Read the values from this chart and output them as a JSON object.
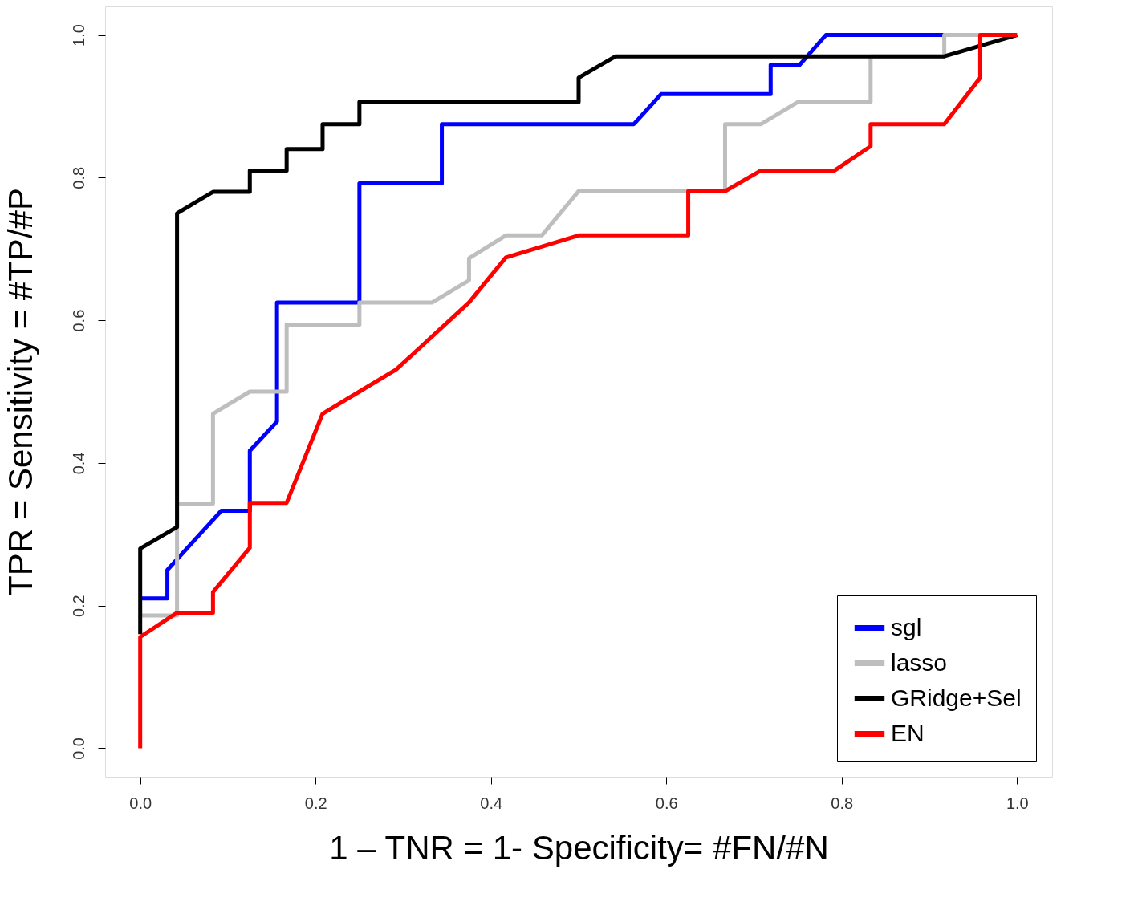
{
  "chart_data": {
    "type": "line",
    "xlabel": "1 – TNR = 1- Specificity= #FN/#N",
    "ylabel": "TPR = Sensitivity = #TP/#P",
    "xlim": [
      -0.04,
      1.04
    ],
    "ylim": [
      -0.04,
      1.04
    ],
    "xticks": [
      {
        "value": 0,
        "label": "0.0"
      },
      0.2,
      0.4,
      0.6,
      0.8,
      {
        "value": 1,
        "label": "1.0"
      }
    ],
    "yticks": [
      {
        "value": 0,
        "label": "0.0"
      },
      0.2,
      0.4,
      0.6,
      0.8,
      {
        "value": 1,
        "label": "1.0"
      }
    ],
    "legend": "bottom right",
    "line_style": "solid",
    "series": [
      {
        "name": "sgl",
        "color": "#0000ff",
        "x": [
          0,
          0.031,
          0.031,
          0.0925,
          0.125,
          0.125,
          0.156,
          0.156,
          0.25,
          0.25,
          0.344,
          0.344,
          0.563,
          0.594,
          0.719,
          0.719,
          0.752,
          0.782,
          0.917
        ],
        "values": [
          0.21,
          0.21,
          0.25,
          0.333,
          0.333,
          0.417,
          0.458,
          0.625,
          0.625,
          0.792,
          0.792,
          0.875,
          0.875,
          0.917,
          0.917,
          0.958,
          0.958,
          1,
          1
        ]
      },
      {
        "name": "lasso",
        "color": "#bebebe",
        "x": [
          0,
          0.042,
          0.042,
          0.083,
          0.083,
          0.125,
          0.167,
          0.167,
          0.25,
          0.25,
          0.333,
          0.375,
          0.375,
          0.417,
          0.458,
          0.5,
          0.667,
          0.667,
          0.708,
          0.75,
          0.833,
          0.833,
          0.917,
          0.917,
          1
        ],
        "values": [
          0.186,
          0.186,
          0.343,
          0.343,
          0.469,
          0.5,
          0.5,
          0.594,
          0.594,
          0.625,
          0.625,
          0.656,
          0.687,
          0.719,
          0.719,
          0.781,
          0.781,
          0.875,
          0.875,
          0.906,
          0.906,
          0.97,
          0.97,
          1,
          1
        ]
      },
      {
        "name": "GRidge+Sel",
        "color": "#000000",
        "x": [
          0,
          0,
          0.042,
          0.042,
          0.083,
          0.125,
          0.125,
          0.167,
          0.167,
          0.208,
          0.208,
          0.25,
          0.25,
          0.5,
          0.5,
          0.542,
          0.917,
          1
        ],
        "values": [
          0.16,
          0.28,
          0.31,
          0.75,
          0.78,
          0.78,
          0.81,
          0.81,
          0.84,
          0.84,
          0.875,
          0.875,
          0.906,
          0.906,
          0.94,
          0.97,
          0.97,
          1
        ]
      },
      {
        "name": "EN",
        "color": "#ff0000",
        "x": [
          0,
          0,
          0.042,
          0.083,
          0.083,
          0.125,
          0.125,
          0.167,
          0.208,
          0.25,
          0.292,
          0.375,
          0.417,
          0.5,
          0.625,
          0.625,
          0.667,
          0.708,
          0.792,
          0.833,
          0.833,
          0.917,
          0.958,
          0.958,
          1
        ],
        "values": [
          0,
          0.156,
          0.19,
          0.19,
          0.219,
          0.281,
          0.344,
          0.344,
          0.469,
          0.5,
          0.531,
          0.625,
          0.688,
          0.719,
          0.719,
          0.781,
          0.781,
          0.81,
          0.81,
          0.844,
          0.875,
          0.875,
          0.94,
          1,
          1
        ]
      }
    ]
  }
}
